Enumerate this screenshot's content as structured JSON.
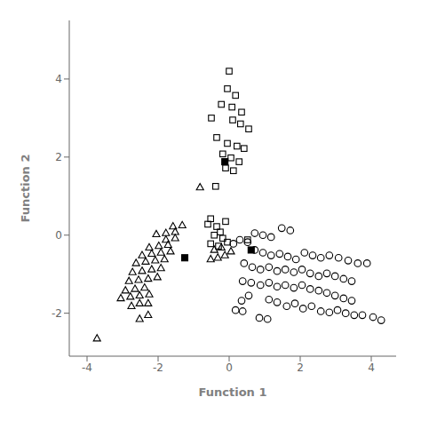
{
  "chart_data": {
    "type": "scatter",
    "xlabel": "Function 1",
    "ylabel": "Function 2",
    "xlim": [
      -4.5,
      4.7
    ],
    "ylim": [
      -3.1,
      5.5
    ],
    "xticks": [
      -4,
      -2,
      0,
      2,
      4
    ],
    "yticks": [
      -2,
      0,
      2,
      4
    ],
    "grid": false,
    "series": [
      {
        "marker": "open_square",
        "color": "#000000",
        "x": [
          0.0,
          -0.05,
          0.18,
          -0.22,
          0.08,
          0.35,
          -0.5,
          0.1,
          0.32,
          0.55,
          -0.35,
          -0.05,
          0.22,
          0.42,
          -0.18,
          0.05,
          0.28,
          -0.1,
          0.12,
          -0.38,
          -0.52,
          -0.25,
          -0.42,
          -0.18,
          -0.52,
          -0.3,
          -0.05,
          -0.6,
          -0.35,
          -0.1,
          0.52
        ],
        "values": [
          4.2,
          3.75,
          3.58,
          3.35,
          3.28,
          3.15,
          3.0,
          2.95,
          2.85,
          2.72,
          2.5,
          2.35,
          2.28,
          2.22,
          2.08,
          1.98,
          1.88,
          1.72,
          1.65,
          1.25,
          0.42,
          0.08,
          0.0,
          -0.08,
          -0.22,
          -0.28,
          -0.18,
          0.28,
          0.22,
          0.35,
          -0.12
        ]
      },
      {
        "marker": "open_circle",
        "color": "#000000",
        "x": [
          1.48,
          1.72,
          0.72,
          0.95,
          1.18,
          0.3,
          0.52,
          0.12,
          0.72,
          0.95,
          1.18,
          1.42,
          1.65,
          1.88,
          2.12,
          2.35,
          2.58,
          2.82,
          3.08,
          3.35,
          3.62,
          3.88,
          0.42,
          0.65,
          0.88,
          1.12,
          1.35,
          1.58,
          1.82,
          2.05,
          2.28,
          2.52,
          2.75,
          2.98,
          3.22,
          3.45,
          0.38,
          0.62,
          0.88,
          1.12,
          1.35,
          1.58,
          1.82,
          2.05,
          2.28,
          2.52,
          2.75,
          2.98,
          3.22,
          3.45,
          0.55,
          0.35,
          1.12,
          1.35,
          1.62,
          1.85,
          2.08,
          2.32,
          2.58,
          2.82,
          3.05,
          3.28,
          3.52,
          3.75,
          4.05,
          4.28,
          0.85,
          1.08,
          0.18,
          0.38
        ],
        "values": [
          0.18,
          0.12,
          0.05,
          0.0,
          -0.05,
          -0.12,
          -0.18,
          -0.22,
          -0.38,
          -0.45,
          -0.52,
          -0.48,
          -0.55,
          -0.62,
          -0.45,
          -0.52,
          -0.58,
          -0.52,
          -0.58,
          -0.65,
          -0.72,
          -0.72,
          -0.72,
          -0.82,
          -0.88,
          -0.82,
          -0.92,
          -0.88,
          -0.95,
          -0.88,
          -0.98,
          -1.05,
          -0.98,
          -1.05,
          -1.12,
          -1.18,
          -1.18,
          -1.22,
          -1.28,
          -1.22,
          -1.32,
          -1.28,
          -1.35,
          -1.28,
          -1.38,
          -1.42,
          -1.48,
          -1.55,
          -1.62,
          -1.68,
          -1.55,
          -1.68,
          -1.65,
          -1.72,
          -1.82,
          -1.75,
          -1.88,
          -1.82,
          -1.95,
          -1.98,
          -1.92,
          -2.0,
          -2.05,
          -2.05,
          -2.1,
          -2.18,
          -2.12,
          -2.15,
          -1.92,
          -1.95
        ]
      },
      {
        "marker": "open_triangle",
        "color": "#000000",
        "x": [
          -3.72,
          -2.52,
          -2.28,
          -2.75,
          -2.52,
          -2.28,
          -3.05,
          -2.78,
          -2.52,
          -2.25,
          -2.92,
          -2.65,
          -2.38,
          -2.82,
          -2.55,
          -2.28,
          -2.02,
          -2.72,
          -2.45,
          -2.18,
          -1.92,
          -2.62,
          -2.35,
          -2.08,
          -1.82,
          -2.45,
          -2.18,
          -1.92,
          -1.65,
          -2.25,
          -1.98,
          -1.72,
          -1.78,
          -1.52,
          -2.05,
          -1.78,
          -1.52,
          -1.58,
          -1.32,
          -0.82,
          -0.42,
          -0.22,
          -0.12,
          0.05,
          -0.32,
          -0.52
        ],
        "values": [
          -2.65,
          -2.15,
          -2.05,
          -1.82,
          -1.75,
          -1.75,
          -1.62,
          -1.58,
          -1.55,
          -1.52,
          -1.42,
          -1.38,
          -1.35,
          -1.18,
          -1.15,
          -1.12,
          -1.08,
          -0.95,
          -0.92,
          -0.88,
          -0.85,
          -0.72,
          -0.68,
          -0.65,
          -0.62,
          -0.52,
          -0.48,
          -0.45,
          -0.42,
          -0.32,
          -0.28,
          -0.25,
          -0.12,
          -0.08,
          0.02,
          0.05,
          0.08,
          0.22,
          0.25,
          1.22,
          -0.38,
          -0.32,
          -0.52,
          -0.42,
          -0.58,
          -0.62
        ]
      },
      {
        "marker": "filled_square",
        "color": "#000000",
        "x": [
          -0.12,
          -1.25,
          0.62
        ],
        "values": [
          1.88,
          -0.58,
          -0.38
        ]
      }
    ]
  }
}
